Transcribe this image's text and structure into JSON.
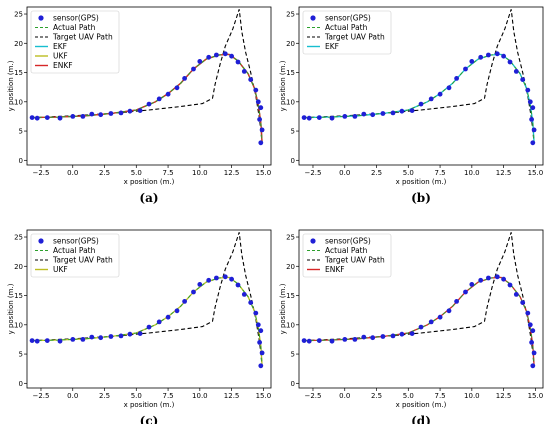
{
  "figure": {
    "panels": [
      {
        "id": "a",
        "caption": "(a)",
        "filters": [
          "EKF",
          "UKF",
          "ENKF"
        ]
      },
      {
        "id": "b",
        "caption": "(b)",
        "filters": [
          "EKF"
        ]
      },
      {
        "id": "c",
        "caption": "(c)",
        "filters": [
          "UKF"
        ]
      },
      {
        "id": "d",
        "caption": "(d)",
        "filters": [
          "ENKF"
        ]
      }
    ]
  },
  "chart_data": {
    "type": "line",
    "xlabel": "x position (m.)",
    "ylabel": "y position (m.)",
    "xlim": [
      -3.6,
      15.6
    ],
    "ylim": [
      -0.8,
      26.2
    ],
    "xticks": [
      -2.5,
      0.0,
      2.5,
      5.0,
      7.5,
      10.0,
      12.5,
      15.0
    ],
    "xtick_labels": [
      "−2.5",
      "0.0",
      "2.5",
      "5.0",
      "7.5",
      "10.0",
      "12.5",
      "15.0"
    ],
    "yticks": [
      0,
      5,
      10,
      15,
      20,
      25
    ],
    "ytick_labels": [
      "0",
      "5",
      "10",
      "15",
      "20",
      "25"
    ],
    "grid": false,
    "legend_position": "top-left",
    "legend_labels": {
      "sensor": "sensor(GPS)",
      "actual": "Actual Path",
      "target": "Target UAV Path",
      "EKF": "EKF",
      "UKF": "UKF",
      "ENKF": "ENKF"
    },
    "colors": {
      "sensor": "#1f1fd6",
      "actual": "#2ca02c",
      "target": "#000000",
      "EKF": "#17becf",
      "UKF": "#bcbd22",
      "ENKF": "#d62728"
    },
    "series": {
      "sensor_gps": [
        [
          -3.2,
          7.3
        ],
        [
          -2.8,
          7.2
        ],
        [
          -2.0,
          7.3
        ],
        [
          -1.0,
          7.2
        ],
        [
          0.0,
          7.5
        ],
        [
          0.8,
          7.5
        ],
        [
          1.5,
          7.9
        ],
        [
          2.2,
          7.8
        ],
        [
          3.0,
          8.0
        ],
        [
          3.8,
          8.1
        ],
        [
          4.5,
          8.4
        ],
        [
          5.3,
          8.5
        ],
        [
          6.0,
          9.6
        ],
        [
          6.8,
          10.5
        ],
        [
          7.5,
          11.3
        ],
        [
          8.2,
          12.4
        ],
        [
          8.8,
          14.0
        ],
        [
          9.5,
          15.6
        ],
        [
          10.0,
          16.9
        ],
        [
          10.7,
          17.6
        ],
        [
          11.3,
          18.0
        ],
        [
          12.0,
          18.2
        ],
        [
          12.5,
          17.8
        ],
        [
          13.0,
          16.8
        ],
        [
          13.5,
          15.2
        ],
        [
          14.0,
          13.8
        ],
        [
          14.4,
          12.0
        ],
        [
          14.6,
          10.0
        ],
        [
          14.8,
          9.0
        ],
        [
          14.7,
          7.0
        ],
        [
          14.9,
          5.2
        ],
        [
          14.8,
          3.0
        ]
      ],
      "actual_path": [
        [
          -3.2,
          7.3
        ],
        [
          -1.0,
          7.4
        ],
        [
          1.0,
          7.6
        ],
        [
          3.0,
          8.0
        ],
        [
          5.0,
          8.6
        ],
        [
          6.5,
          10.0
        ],
        [
          7.5,
          11.4
        ],
        [
          8.5,
          13.2
        ],
        [
          9.5,
          15.6
        ],
        [
          10.5,
          17.3
        ],
        [
          11.5,
          18.0
        ],
        [
          12.3,
          18.1
        ],
        [
          13.0,
          17.0
        ],
        [
          13.8,
          14.8
        ],
        [
          14.3,
          12.3
        ],
        [
          14.6,
          9.5
        ],
        [
          14.8,
          6.5
        ],
        [
          14.9,
          3.0
        ]
      ],
      "target_uav_path": [
        [
          -3.2,
          7.3
        ],
        [
          0.0,
          7.6
        ],
        [
          3.0,
          8.0
        ],
        [
          6.0,
          8.6
        ],
        [
          8.5,
          9.2
        ],
        [
          10.2,
          9.7
        ],
        [
          11.0,
          10.6
        ],
        [
          11.2,
          13.0
        ],
        [
          11.6,
          16.5
        ],
        [
          12.0,
          19.5
        ],
        [
          12.6,
          22.5
        ],
        [
          13.1,
          25.8
        ],
        [
          13.3,
          22.0
        ],
        [
          13.6,
          18.5
        ],
        [
          14.0,
          15.0
        ],
        [
          14.4,
          11.0
        ],
        [
          14.7,
          7.0
        ],
        [
          14.9,
          3.0
        ]
      ],
      "EKF": [
        [
          -3.2,
          7.3
        ],
        [
          -1.0,
          7.4
        ],
        [
          1.0,
          7.6
        ],
        [
          3.0,
          8.0
        ],
        [
          5.0,
          8.6
        ],
        [
          6.5,
          10.0
        ],
        [
          7.5,
          11.4
        ],
        [
          8.5,
          13.2
        ],
        [
          9.5,
          15.6
        ],
        [
          10.5,
          17.3
        ],
        [
          11.5,
          18.0
        ],
        [
          12.3,
          18.1
        ],
        [
          13.0,
          17.0
        ],
        [
          13.8,
          14.8
        ],
        [
          14.3,
          12.3
        ],
        [
          14.6,
          9.5
        ],
        [
          14.8,
          6.5
        ],
        [
          14.9,
          3.0
        ]
      ],
      "UKF": [
        [
          -3.2,
          7.3
        ],
        [
          -1.0,
          7.4
        ],
        [
          1.0,
          7.6
        ],
        [
          3.0,
          8.0
        ],
        [
          5.0,
          8.6
        ],
        [
          6.5,
          10.0
        ],
        [
          7.5,
          11.4
        ],
        [
          8.5,
          13.2
        ],
        [
          9.5,
          15.6
        ],
        [
          10.5,
          17.3
        ],
        [
          11.5,
          18.0
        ],
        [
          12.3,
          18.1
        ],
        [
          13.0,
          17.0
        ],
        [
          13.8,
          14.8
        ],
        [
          14.3,
          12.3
        ],
        [
          14.6,
          9.5
        ],
        [
          14.8,
          6.5
        ],
        [
          14.9,
          3.0
        ]
      ],
      "ENKF": [
        [
          -3.2,
          7.3
        ],
        [
          -1.0,
          7.4
        ],
        [
          1.0,
          7.6
        ],
        [
          3.0,
          8.0
        ],
        [
          5.0,
          8.6
        ],
        [
          6.5,
          10.0
        ],
        [
          7.5,
          11.4
        ],
        [
          8.5,
          13.2
        ],
        [
          9.5,
          15.6
        ],
        [
          10.5,
          17.3
        ],
        [
          11.5,
          18.0
        ],
        [
          12.3,
          18.1
        ],
        [
          13.0,
          17.0
        ],
        [
          13.8,
          14.8
        ],
        [
          14.3,
          12.3
        ],
        [
          14.6,
          9.5
        ],
        [
          14.8,
          6.5
        ],
        [
          14.9,
          3.0
        ]
      ]
    }
  }
}
